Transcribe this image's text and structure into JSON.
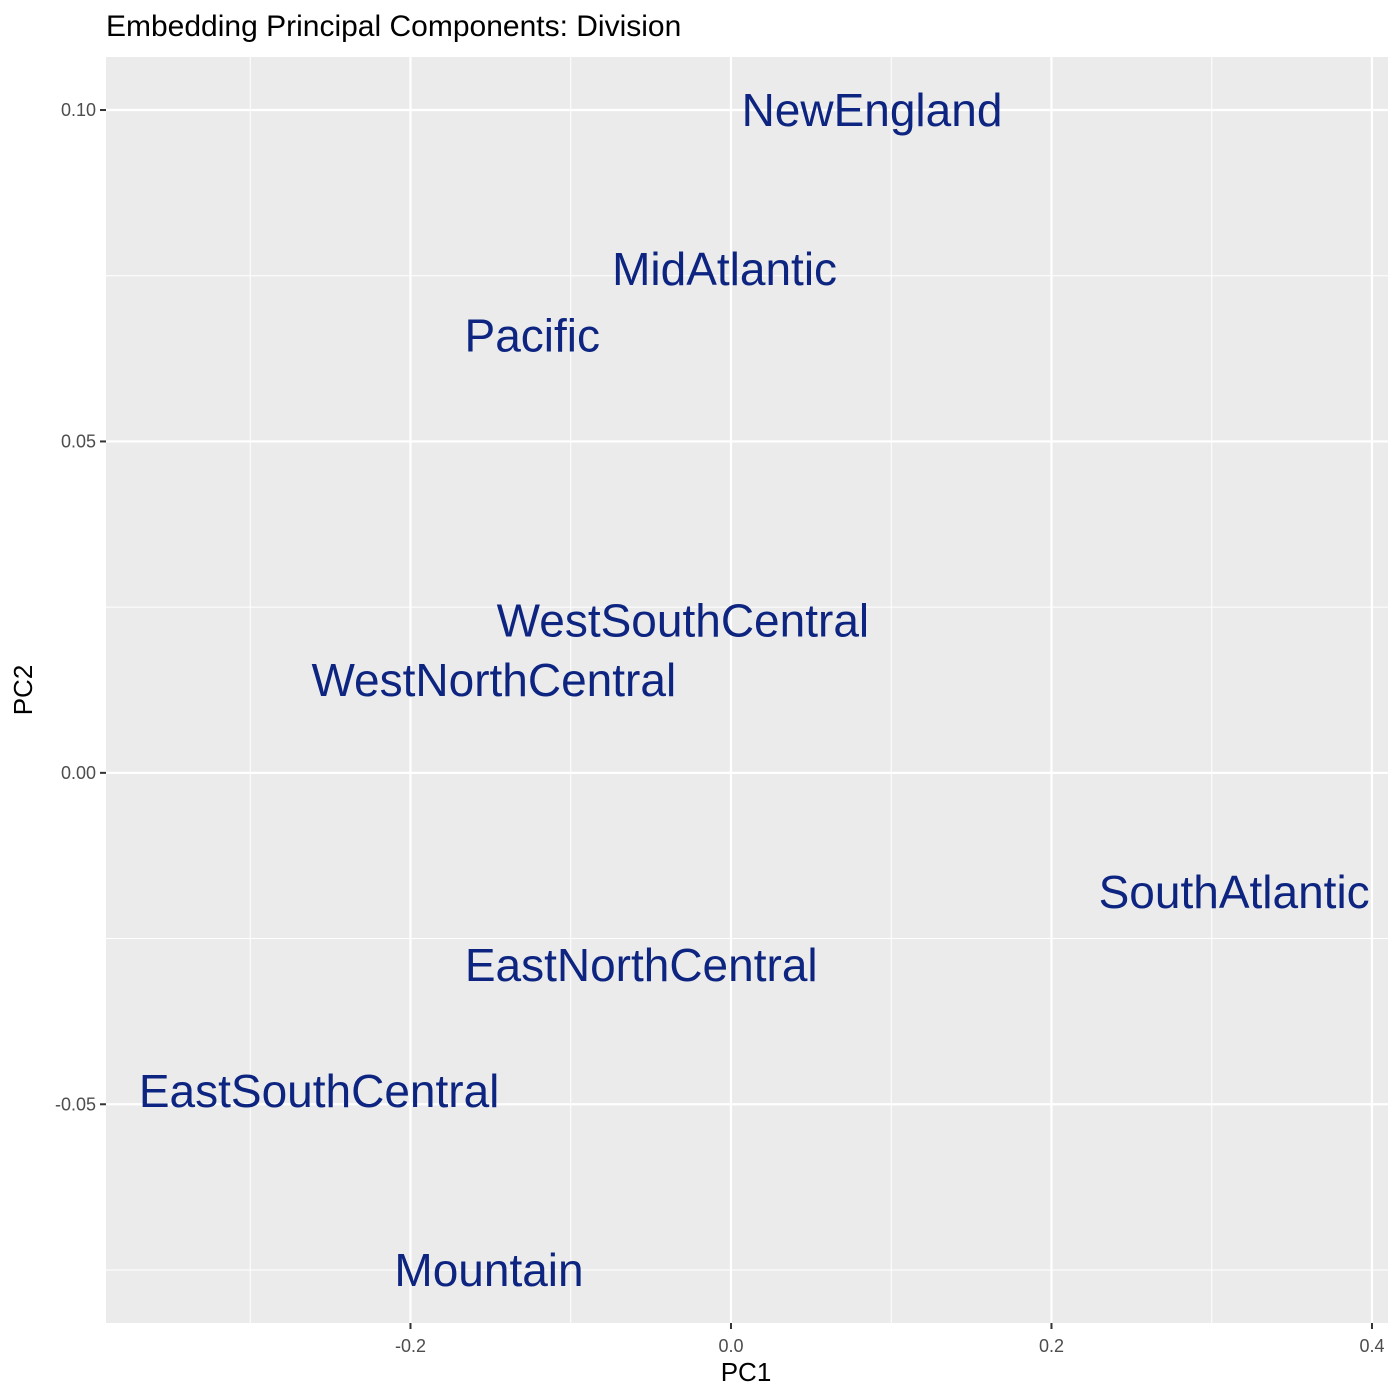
{
  "chart_data": {
    "type": "scatter",
    "title": "Embedding Principal Components: Division",
    "xlabel": "PC1",
    "ylabel": "PC2",
    "xlim": [
      -0.39,
      0.41
    ],
    "ylim": [
      -0.083,
      0.108
    ],
    "x_ticks": [
      -0.2,
      0.0,
      0.2,
      0.4
    ],
    "x_tick_labels": [
      "-0.2",
      "0.0",
      "0.2",
      "0.4"
    ],
    "y_ticks": [
      -0.05,
      0.0,
      0.05,
      0.1
    ],
    "y_tick_labels": [
      "-0.05",
      "0.00",
      "0.05",
      "0.10"
    ],
    "grid": true,
    "label_color": "#0d2580",
    "panel_background": "#ebebeb",
    "points": [
      {
        "label": "NewEngland",
        "x": 0.088,
        "y": 0.1
      },
      {
        "label": "MidAtlantic",
        "x": -0.004,
        "y": 0.076
      },
      {
        "label": "Pacific",
        "x": -0.124,
        "y": 0.066
      },
      {
        "label": "WestSouthCentral",
        "x": -0.03,
        "y": 0.023
      },
      {
        "label": "WestNorthCentral",
        "x": -0.148,
        "y": 0.014
      },
      {
        "label": "SouthAtlantic",
        "x": 0.314,
        "y": -0.018
      },
      {
        "label": "EastNorthCentral",
        "x": -0.056,
        "y": -0.029
      },
      {
        "label": "EastSouthCentral",
        "x": -0.257,
        "y": -0.048
      },
      {
        "label": "Mountain",
        "x": -0.151,
        "y": -0.075
      }
    ]
  }
}
